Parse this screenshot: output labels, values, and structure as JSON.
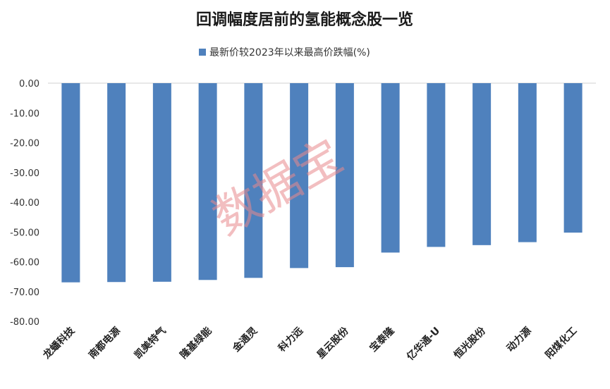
{
  "chart_data": {
    "type": "bar",
    "title": "回调幅度居前的氢能概念股一览",
    "categories": [
      "龙蟠科技",
      "南都电源",
      "凯美特气",
      "隆基绿能",
      "金通灵",
      "科力远",
      "星云股份",
      "宝泰隆",
      "亿华通-U",
      "恒光股份",
      "动力源",
      "阳煤化工"
    ],
    "series": [
      {
        "name": "最新价较2023年以来最高价跌幅(%)",
        "color": "#4F81BD",
        "values": [
          -66.9,
          -66.8,
          -66.7,
          -66.1,
          -65.4,
          -62.1,
          -61.8,
          -56.9,
          -55.0,
          -54.4,
          -53.4,
          -50.2
        ]
      }
    ],
    "ylim": [
      -80,
      0
    ],
    "yticks": [
      "0.00",
      "-10.00",
      "-20.00",
      "-30.00",
      "-40.00",
      "-50.00",
      "-60.00",
      "-70.00",
      "-80.00"
    ],
    "legend_position": "top",
    "grid": false
  },
  "watermark": "数据宝"
}
